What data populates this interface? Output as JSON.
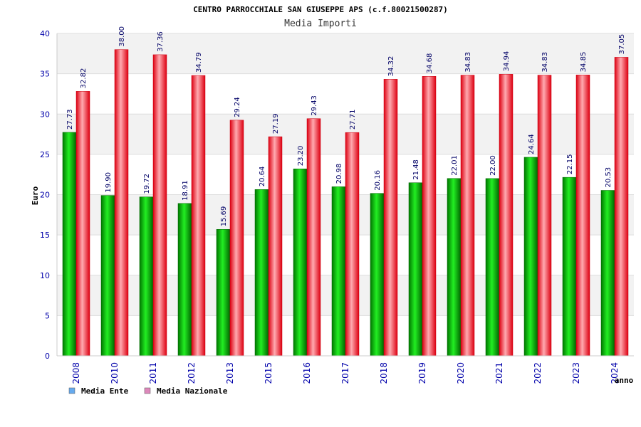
{
  "chart_data": {
    "type": "bar",
    "title": "CENTRO PARROCCHIALE SAN GIUSEPPE APS (c.f.80021500287)",
    "subtitle": "Media Importi",
    "xlabel": "anno",
    "ylabel": "Euro",
    "ylim": [
      0,
      40
    ],
    "yticks": [
      0,
      5,
      10,
      15,
      20,
      25,
      30,
      35,
      40
    ],
    "grid": true,
    "legend_position": "bottom-left",
    "categories": [
      "2008",
      "2010",
      "2011",
      "2012",
      "2013",
      "2015",
      "2016",
      "2017",
      "2018",
      "2019",
      "2020",
      "2021",
      "2022",
      "2023",
      "2024"
    ],
    "series": [
      {
        "name": "Media Ente",
        "color": "#00aa00",
        "legend_color": "#66aaee",
        "values": [
          27.73,
          19.9,
          19.72,
          18.91,
          15.69,
          20.64,
          23.2,
          20.98,
          20.16,
          21.48,
          22.01,
          22.0,
          24.64,
          22.15,
          20.53
        ],
        "labels": [
          "27.73",
          "19.90",
          "19.72",
          "18.91",
          "15.69",
          "20.64",
          "23.20",
          "20.98",
          "20.16",
          "21.48",
          "22.01",
          "22.00",
          "24.64",
          "22.15",
          "20.53"
        ]
      },
      {
        "name": "Media Nazionale",
        "color": "#e8192c",
        "legend_color": "#dd88bb",
        "values": [
          32.82,
          38.0,
          37.36,
          34.79,
          29.24,
          27.19,
          29.43,
          27.71,
          34.32,
          34.68,
          34.83,
          34.94,
          34.83,
          34.85,
          37.05
        ],
        "labels": [
          "32.82",
          "38.00",
          "37.36",
          "34.79",
          "29.24",
          "27.19",
          "29.43",
          "27.71",
          "34.32",
          "34.68",
          "34.83",
          "34.94",
          "34.83",
          "34.85",
          "37.05"
        ]
      }
    ]
  }
}
